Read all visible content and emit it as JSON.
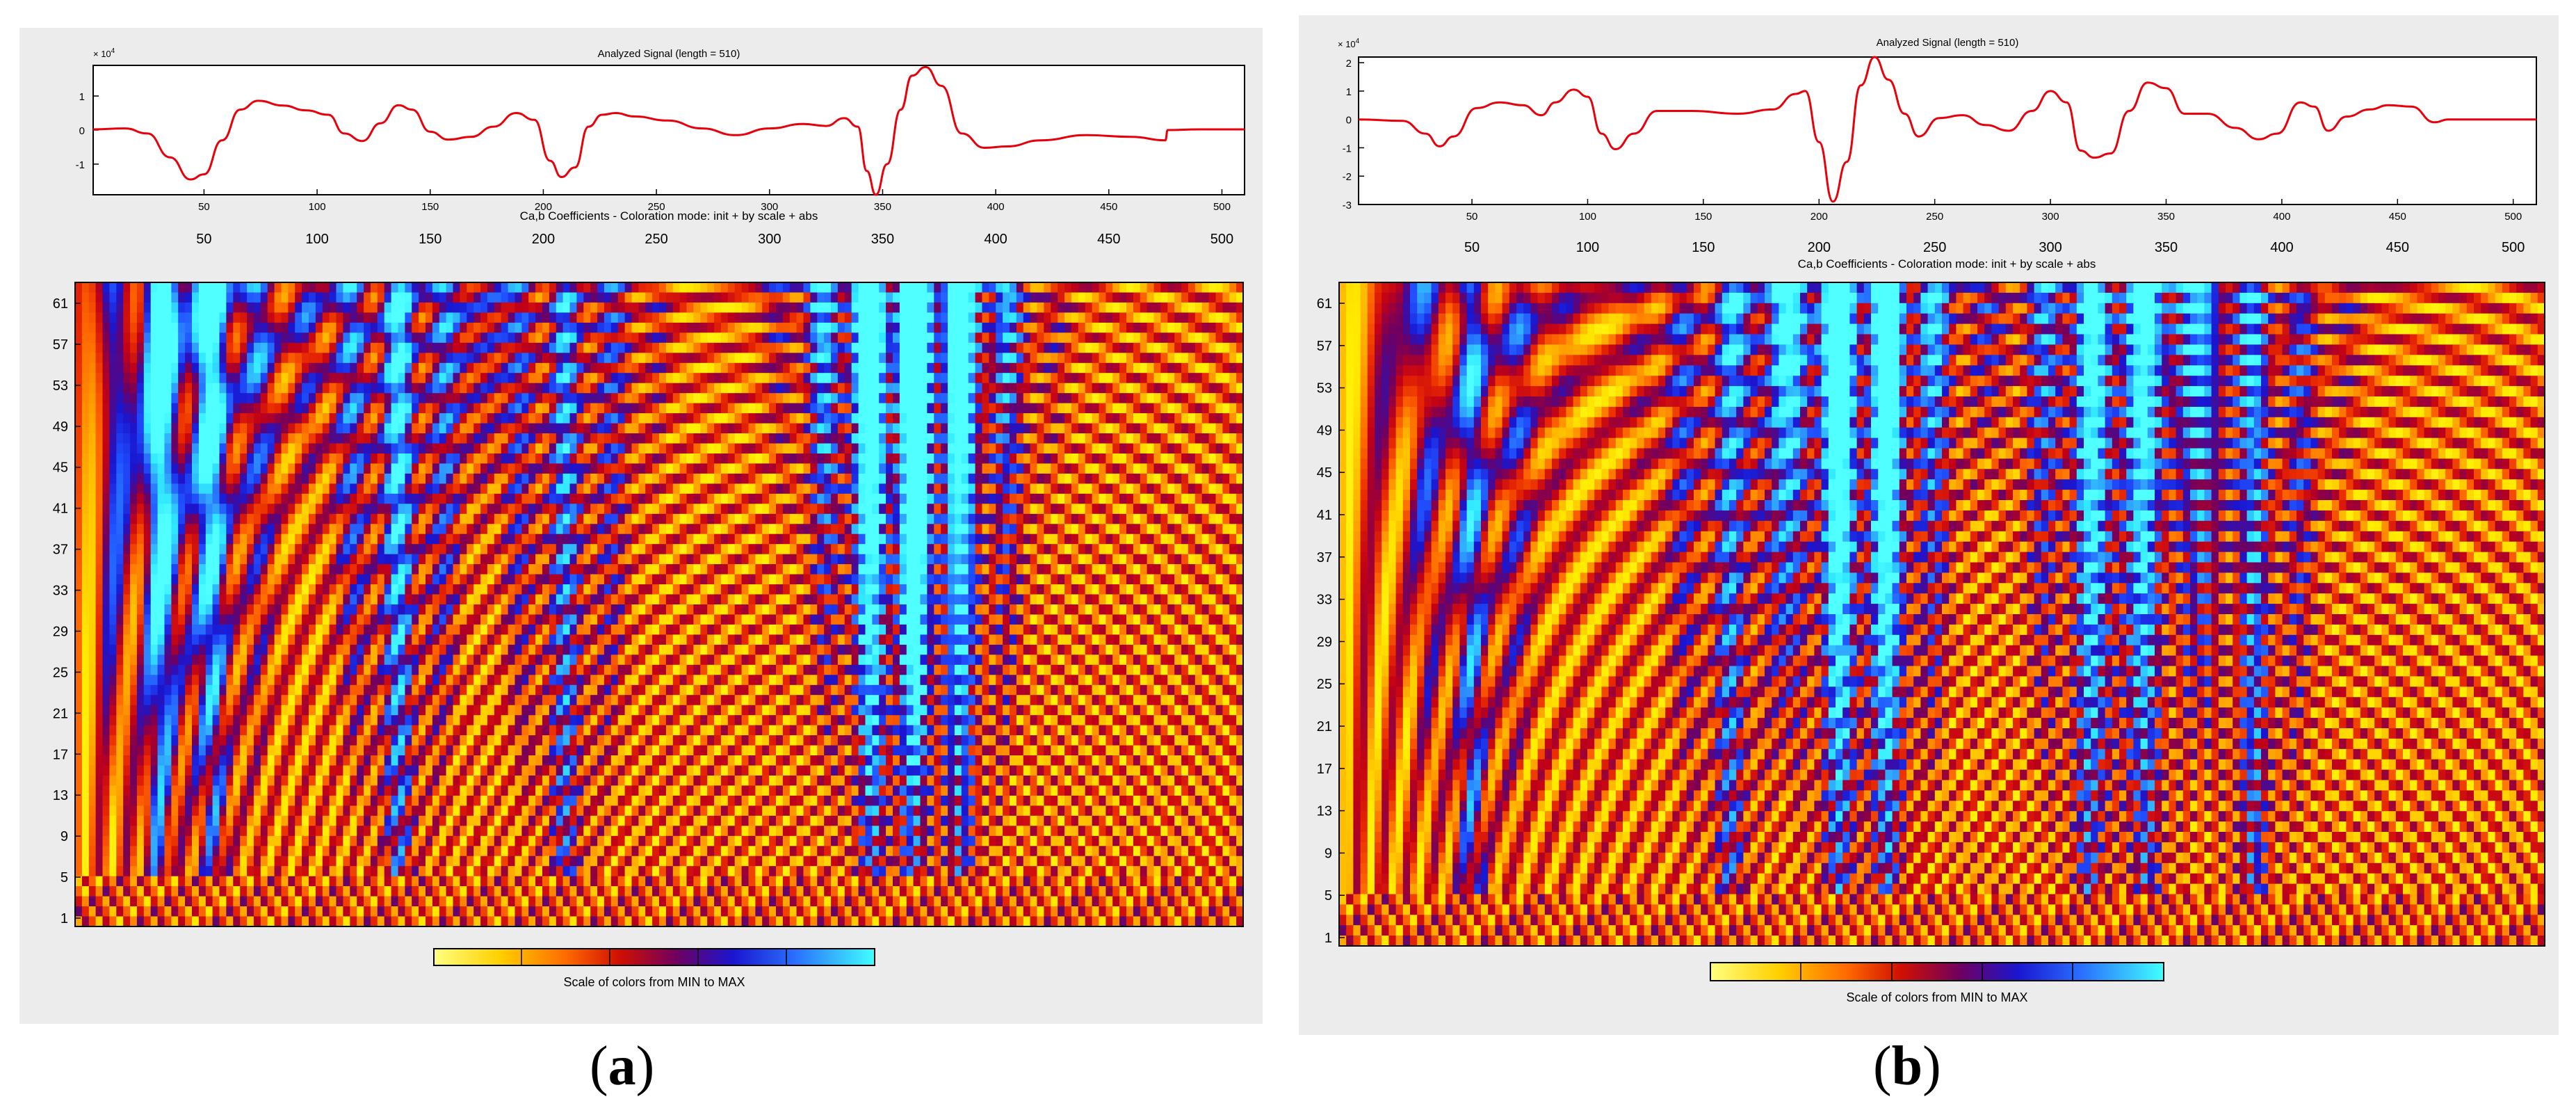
{
  "colors": {
    "signal": "#e8000b",
    "panel_bg": "#ececec",
    "colormap": [
      "#ffff80",
      "#ffee00",
      "#ffb000",
      "#ff6a00",
      "#e82800",
      "#c00018",
      "#700060",
      "#1a16d0",
      "#2050ff",
      "#30a0ff",
      "#30e8ff",
      "#50ffff"
    ]
  },
  "panels": [
    {
      "label_open": "(",
      "label_letter": "a",
      "label_close": ")",
      "signal_title": "Analyzed Signal (length = 510)",
      "exponent": "× 10",
      "exponent_power": "4",
      "map_title": "Ca,b Coefficients - Coloration mode: init + by scale + abs",
      "colorbar_label": "Scale of colors from MIN to MAX",
      "chart_data": {
        "type": "line",
        "title": "Analyzed Signal (length = 510)",
        "xlim": [
          1,
          510
        ],
        "ylim": [
          -1.9,
          1.9
        ],
        "x_ticks": [
          "50",
          "100",
          "150",
          "200",
          "250",
          "300",
          "350",
          "400",
          "450",
          "500"
        ],
        "y_ticks": [
          "1",
          "0",
          "-1"
        ],
        "points": [
          [
            1,
            0.02
          ],
          [
            15,
            0.05
          ],
          [
            25,
            -0.1
          ],
          [
            35,
            -0.8
          ],
          [
            44,
            -1.45
          ],
          [
            50,
            -1.3
          ],
          [
            58,
            -0.3
          ],
          [
            66,
            0.6
          ],
          [
            74,
            0.86
          ],
          [
            85,
            0.72
          ],
          [
            95,
            0.58
          ],
          [
            105,
            0.45
          ],
          [
            112,
            -0.1
          ],
          [
            120,
            -0.32
          ],
          [
            128,
            0.2
          ],
          [
            136,
            0.73
          ],
          [
            142,
            0.6
          ],
          [
            150,
            -0.05
          ],
          [
            158,
            -0.28
          ],
          [
            168,
            -0.2
          ],
          [
            178,
            0.1
          ],
          [
            188,
            0.5
          ],
          [
            196,
            0.3
          ],
          [
            203,
            -0.9
          ],
          [
            208,
            -1.38
          ],
          [
            214,
            -1.1
          ],
          [
            220,
            0.1
          ],
          [
            226,
            0.45
          ],
          [
            232,
            0.5
          ],
          [
            240,
            0.4
          ],
          [
            255,
            0.28
          ],
          [
            270,
            0.05
          ],
          [
            285,
            -0.15
          ],
          [
            300,
            0.05
          ],
          [
            315,
            0.18
          ],
          [
            325,
            0.12
          ],
          [
            333,
            0.35
          ],
          [
            339,
            0.1
          ],
          [
            343,
            -1.2
          ],
          [
            347,
            -1.9
          ],
          [
            352,
            -1.0
          ],
          [
            358,
            0.6
          ],
          [
            363,
            1.6
          ],
          [
            369,
            1.85
          ],
          [
            376,
            1.3
          ],
          [
            385,
            -0.1
          ],
          [
            395,
            -0.52
          ],
          [
            405,
            -0.48
          ],
          [
            420,
            -0.3
          ],
          [
            440,
            -0.15
          ],
          [
            460,
            -0.2
          ],
          [
            475,
            -0.3
          ],
          [
            476,
            0.0
          ],
          [
            490,
            0.02
          ],
          [
            510,
            0.02
          ]
        ],
        "scalogram": {
          "title": "Ca,b Coefficients - Coloration mode: init + by scale + abs",
          "type": "heatmap",
          "scales_ylabels": [
            "61",
            "57",
            "53",
            "49",
            "45",
            "41",
            "37",
            "33",
            "29",
            "25",
            "21",
            "17",
            "13",
            "9",
            "5",
            "1"
          ],
          "x_ticks": [
            "50",
            "100",
            "150",
            "200",
            "250",
            "300",
            "350",
            "400",
            "450",
            "500"
          ],
          "colorbar_label": "Scale of colors from MIN to MAX"
        }
      }
    },
    {
      "label_open": "(",
      "label_letter": "b",
      "label_close": ")",
      "signal_title": "Analyzed Signal (length = 510)",
      "exponent": "× 10",
      "exponent_power": "4",
      "map_title": "Ca,b Coefficients - Coloration mode: init + by scale + abs",
      "colorbar_label": "Scale of colors from MIN to MAX",
      "chart_data": {
        "type": "line",
        "title": "Analyzed Signal (length = 510)",
        "xlim": [
          1,
          510
        ],
        "ylim": [
          -3,
          2.2
        ],
        "x_ticks": [
          "50",
          "100",
          "150",
          "200",
          "250",
          "300",
          "350",
          "400",
          "450",
          "500"
        ],
        "y_ticks": [
          "2",
          "1",
          "0",
          "-1",
          "-2",
          "-3"
        ],
        "points": [
          [
            1,
            0
          ],
          [
            20,
            -0.05
          ],
          [
            30,
            -0.5
          ],
          [
            36,
            -0.95
          ],
          [
            42,
            -0.6
          ],
          [
            52,
            0.4
          ],
          [
            62,
            0.6
          ],
          [
            72,
            0.5
          ],
          [
            80,
            0.15
          ],
          [
            86,
            0.6
          ],
          [
            94,
            1.05
          ],
          [
            100,
            0.8
          ],
          [
            106,
            -0.5
          ],
          [
            112,
            -1.05
          ],
          [
            120,
            -0.5
          ],
          [
            130,
            0.3
          ],
          [
            145,
            0.3
          ],
          [
            165,
            0.2
          ],
          [
            180,
            0.35
          ],
          [
            190,
            0.9
          ],
          [
            194,
            1.0
          ],
          [
            200,
            -0.8
          ],
          [
            206,
            -2.9
          ],
          [
            212,
            -1.5
          ],
          [
            218,
            1.2
          ],
          [
            224,
            2.2
          ],
          [
            230,
            1.4
          ],
          [
            237,
            0.2
          ],
          [
            243,
            -0.6
          ],
          [
            252,
            0.05
          ],
          [
            262,
            0.15
          ],
          [
            272,
            -0.2
          ],
          [
            282,
            -0.4
          ],
          [
            292,
            0.3
          ],
          [
            300,
            1.0
          ],
          [
            307,
            0.6
          ],
          [
            313,
            -1.1
          ],
          [
            319,
            -1.35
          ],
          [
            326,
            -1.2
          ],
          [
            334,
            0.3
          ],
          [
            342,
            1.3
          ],
          [
            350,
            1.1
          ],
          [
            358,
            0.2
          ],
          [
            368,
            0.2
          ],
          [
            380,
            -0.3
          ],
          [
            390,
            -0.7
          ],
          [
            398,
            -0.5
          ],
          [
            408,
            0.6
          ],
          [
            414,
            0.45
          ],
          [
            420,
            -0.4
          ],
          [
            428,
            0.1
          ],
          [
            438,
            0.35
          ],
          [
            446,
            0.5
          ],
          [
            456,
            0.45
          ],
          [
            466,
            -0.1
          ],
          [
            472,
            0.0
          ],
          [
            490,
            0
          ],
          [
            510,
            0
          ]
        ],
        "scalogram": {
          "title": "Ca,b Coefficients - Coloration mode: init + by scale + abs",
          "type": "heatmap",
          "scales_ylabels": [
            "61",
            "57",
            "53",
            "49",
            "45",
            "41",
            "37",
            "33",
            "29",
            "25",
            "21",
            "17",
            "13",
            "9",
            "5",
            "1"
          ],
          "x_ticks": [
            "50",
            "100",
            "150",
            "200",
            "250",
            "300",
            "350",
            "400",
            "450",
            "500"
          ],
          "colorbar_label": "Scale of colors from MIN to MAX"
        }
      }
    }
  ]
}
